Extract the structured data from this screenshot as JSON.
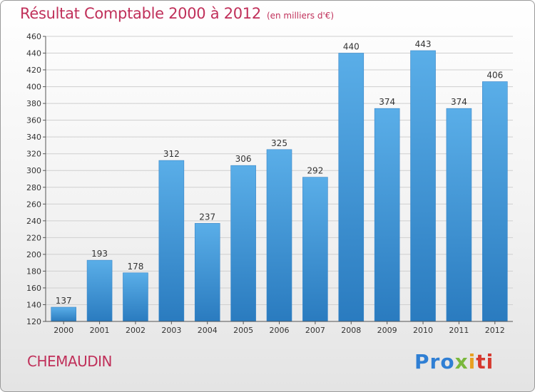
{
  "header": {
    "title": "Résultat Comptable 2000 à 2012",
    "unit_note": "(en milliers d'€)"
  },
  "footer": {
    "town": "CHEMAUDIN",
    "logo_text": "Proxiti",
    "logo_parts": [
      "Pro",
      "x",
      "i",
      "ti"
    ]
  },
  "colors": {
    "title": "#c0305a",
    "bar_top": "#5aaee8",
    "bar_bottom": "#2a7bbf",
    "grid": "#cfcfcf",
    "axis_text": "#333333"
  },
  "chart_data": {
    "type": "bar",
    "title": "Résultat Comptable 2000 à 2012",
    "subtitle": "(en milliers d'€)",
    "xlabel": "",
    "ylabel": "",
    "categories": [
      "2000",
      "2001",
      "2002",
      "2003",
      "2004",
      "2005",
      "2006",
      "2007",
      "2008",
      "2009",
      "2010",
      "2011",
      "2012"
    ],
    "values": [
      137,
      193,
      178,
      312,
      237,
      306,
      325,
      292,
      440,
      374,
      443,
      374,
      406
    ],
    "ylim": [
      120,
      460
    ],
    "yticks": [
      120,
      140,
      160,
      180,
      200,
      220,
      240,
      260,
      280,
      300,
      320,
      340,
      360,
      380,
      400,
      420,
      440,
      460
    ],
    "grid": true,
    "data_labels": true
  }
}
